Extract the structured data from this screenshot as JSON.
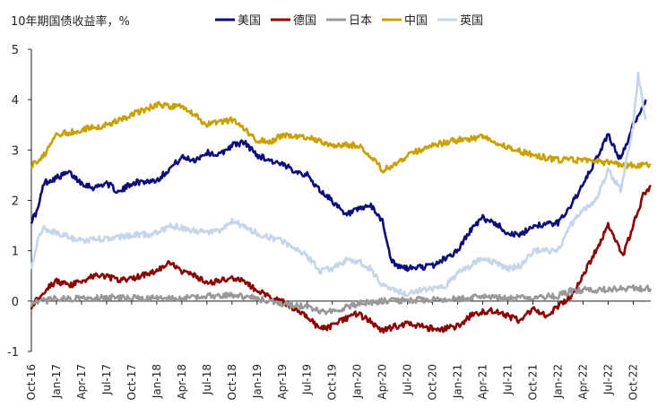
{
  "chart_data": {
    "type": "line",
    "title": "10年期国债收益率，%",
    "xlabel": "",
    "ylabel": "",
    "ylim": [
      -1,
      5
    ],
    "yticks": [
      5,
      4,
      3,
      2,
      1,
      0,
      -1
    ],
    "grid": false,
    "legend_position": "top",
    "x_range": [
      "2016-10",
      "2022-10"
    ],
    "x_tick_labels": [
      "Oct-16",
      "Jan-17",
      "Apr-17",
      "Jul-17",
      "Oct-17",
      "Jan-18",
      "Apr-18",
      "Jul-18",
      "Oct-18",
      "Jan-19",
      "Apr-19",
      "Jul-19",
      "Oct-19",
      "Jan-20",
      "Apr-20",
      "Jul-20",
      "Oct-20",
      "Jan-21",
      "Apr-21",
      "Jul-21",
      "Oct-21",
      "Jan-22",
      "Apr-22",
      "Jul-22",
      "Oct-22"
    ],
    "series": [
      {
        "name": "美国",
        "color": "#0d0d7a",
        "points": [
          [
            0,
            1.6
          ],
          [
            0.25,
            1.8
          ],
          [
            0.5,
            2.35
          ],
          [
            1,
            2.45
          ],
          [
            1.5,
            2.55
          ],
          [
            2,
            2.35
          ],
          [
            2.5,
            2.25
          ],
          [
            3,
            2.35
          ],
          [
            3.5,
            2.15
          ],
          [
            4,
            2.35
          ],
          [
            5,
            2.4
          ],
          [
            6,
            2.85
          ],
          [
            6.5,
            2.8
          ],
          [
            7,
            2.95
          ],
          [
            7.5,
            2.9
          ],
          [
            8,
            3.1
          ],
          [
            8.5,
            3.15
          ],
          [
            9,
            2.9
          ],
          [
            10,
            2.7
          ],
          [
            11,
            2.5
          ],
          [
            11.5,
            2.2
          ],
          [
            12,
            2.0
          ],
          [
            12.5,
            1.7
          ],
          [
            13,
            1.8
          ],
          [
            13.5,
            1.9
          ],
          [
            14,
            1.6
          ],
          [
            14.3,
            0.9
          ],
          [
            14.5,
            0.7
          ],
          [
            15,
            0.65
          ],
          [
            16,
            0.7
          ],
          [
            16.5,
            0.85
          ],
          [
            17,
            1.0
          ],
          [
            17.5,
            1.4
          ],
          [
            18,
            1.65
          ],
          [
            18.5,
            1.55
          ],
          [
            19,
            1.35
          ],
          [
            19.5,
            1.3
          ],
          [
            20,
            1.5
          ],
          [
            21,
            1.55
          ],
          [
            21.5,
            1.9
          ],
          [
            22,
            2.3
          ],
          [
            22.5,
            2.8
          ],
          [
            23,
            3.3
          ],
          [
            23.5,
            2.8
          ],
          [
            24,
            3.5
          ],
          [
            24.5,
            4.0
          ]
        ]
      },
      {
        "name": "德国",
        "color": "#8b0000",
        "points": [
          [
            0,
            -0.1
          ],
          [
            0.5,
            0.2
          ],
          [
            1,
            0.4
          ],
          [
            1.5,
            0.3
          ],
          [
            2,
            0.4
          ],
          [
            2.5,
            0.5
          ],
          [
            3,
            0.5
          ],
          [
            3.5,
            0.4
          ],
          [
            4,
            0.45
          ],
          [
            5,
            0.6
          ],
          [
            5.5,
            0.75
          ],
          [
            6,
            0.6
          ],
          [
            6.5,
            0.5
          ],
          [
            7,
            0.35
          ],
          [
            8,
            0.45
          ],
          [
            8.5,
            0.4
          ],
          [
            9,
            0.2
          ],
          [
            10,
            0.0
          ],
          [
            11,
            -0.3
          ],
          [
            11.5,
            -0.55
          ],
          [
            12,
            -0.5
          ],
          [
            12.5,
            -0.35
          ],
          [
            13,
            -0.25
          ],
          [
            13.5,
            -0.4
          ],
          [
            14,
            -0.6
          ],
          [
            14.5,
            -0.5
          ],
          [
            15,
            -0.45
          ],
          [
            16,
            -0.55
          ],
          [
            16.5,
            -0.55
          ],
          [
            17,
            -0.5
          ],
          [
            17.5,
            -0.3
          ],
          [
            18,
            -0.2
          ],
          [
            18.5,
            -0.2
          ],
          [
            19,
            -0.3
          ],
          [
            19.5,
            -0.4
          ],
          [
            20,
            -0.15
          ],
          [
            20.5,
            -0.3
          ],
          [
            21,
            -0.1
          ],
          [
            21.5,
            0.1
          ],
          [
            22,
            0.5
          ],
          [
            22.5,
            1.0
          ],
          [
            23,
            1.5
          ],
          [
            23.3,
            1.2
          ],
          [
            23.6,
            0.9
          ],
          [
            24,
            1.5
          ],
          [
            24.4,
            2.1
          ],
          [
            24.7,
            2.3
          ]
        ]
      },
      {
        "name": "日本",
        "color": "#999999",
        "points": [
          [
            0,
            -0.05
          ],
          [
            1,
            0.05
          ],
          [
            2,
            0.05
          ],
          [
            3,
            0.08
          ],
          [
            4,
            0.06
          ],
          [
            5,
            0.05
          ],
          [
            6,
            0.05
          ],
          [
            7,
            0.1
          ],
          [
            8,
            0.13
          ],
          [
            9,
            0.05
          ],
          [
            10,
            -0.05
          ],
          [
            11,
            -0.12
          ],
          [
            11.5,
            -0.2
          ],
          [
            12,
            -0.2
          ],
          [
            13,
            -0.05
          ],
          [
            14,
            0.0
          ],
          [
            15,
            0.02
          ],
          [
            16,
            0.03
          ],
          [
            17,
            0.04
          ],
          [
            18,
            0.1
          ],
          [
            19,
            0.05
          ],
          [
            20,
            0.08
          ],
          [
            21,
            0.1
          ],
          [
            21.5,
            0.2
          ],
          [
            22,
            0.22
          ],
          [
            23,
            0.23
          ],
          [
            24,
            0.25
          ],
          [
            24.7,
            0.25
          ]
        ]
      },
      {
        "name": "中国",
        "color": "#c9a000",
        "points": [
          [
            0,
            2.7
          ],
          [
            0.5,
            2.9
          ],
          [
            1,
            3.3
          ],
          [
            2,
            3.4
          ],
          [
            3,
            3.5
          ],
          [
            4,
            3.7
          ],
          [
            5,
            3.9
          ],
          [
            6,
            3.85
          ],
          [
            6.5,
            3.7
          ],
          [
            7,
            3.5
          ],
          [
            8,
            3.6
          ],
          [
            9,
            3.2
          ],
          [
            9.5,
            3.15
          ],
          [
            10,
            3.3
          ],
          [
            11,
            3.25
          ],
          [
            12,
            3.1
          ],
          [
            13,
            3.1
          ],
          [
            13.5,
            2.9
          ],
          [
            14,
            2.6
          ],
          [
            14.5,
            2.7
          ],
          [
            15,
            2.9
          ],
          [
            16,
            3.1
          ],
          [
            17,
            3.2
          ],
          [
            18,
            3.25
          ],
          [
            19,
            3.05
          ],
          [
            20,
            2.9
          ],
          [
            21,
            2.8
          ],
          [
            22,
            2.8
          ],
          [
            23,
            2.75
          ],
          [
            23.5,
            2.7
          ],
          [
            24,
            2.7
          ],
          [
            24.7,
            2.7
          ]
        ]
      },
      {
        "name": "英国",
        "color": "#c5d5ea",
        "points": [
          [
            0,
            0.7
          ],
          [
            0.25,
            1.2
          ],
          [
            0.5,
            1.45
          ],
          [
            1,
            1.35
          ],
          [
            2,
            1.2
          ],
          [
            3,
            1.25
          ],
          [
            4,
            1.3
          ],
          [
            5,
            1.35
          ],
          [
            5.5,
            1.5
          ],
          [
            6,
            1.45
          ],
          [
            7,
            1.35
          ],
          [
            7.5,
            1.4
          ],
          [
            8,
            1.6
          ],
          [
            9,
            1.35
          ],
          [
            10,
            1.2
          ],
          [
            11,
            0.9
          ],
          [
            11.5,
            0.6
          ],
          [
            12,
            0.65
          ],
          [
            12.5,
            0.8
          ],
          [
            13,
            0.8
          ],
          [
            13.5,
            0.65
          ],
          [
            14,
            0.3
          ],
          [
            14.5,
            0.2
          ],
          [
            15,
            0.15
          ],
          [
            16,
            0.25
          ],
          [
            16.5,
            0.3
          ],
          [
            17,
            0.55
          ],
          [
            18,
            0.85
          ],
          [
            18.5,
            0.75
          ],
          [
            19,
            0.65
          ],
          [
            19.5,
            0.7
          ],
          [
            20,
            1.0
          ],
          [
            21,
            1.0
          ],
          [
            21.5,
            1.5
          ],
          [
            22,
            1.8
          ],
          [
            22.5,
            2.0
          ],
          [
            23,
            2.6
          ],
          [
            23.5,
            2.2
          ],
          [
            24,
            3.5
          ],
          [
            24.2,
            4.5
          ],
          [
            24.5,
            3.6
          ]
        ]
      }
    ]
  }
}
